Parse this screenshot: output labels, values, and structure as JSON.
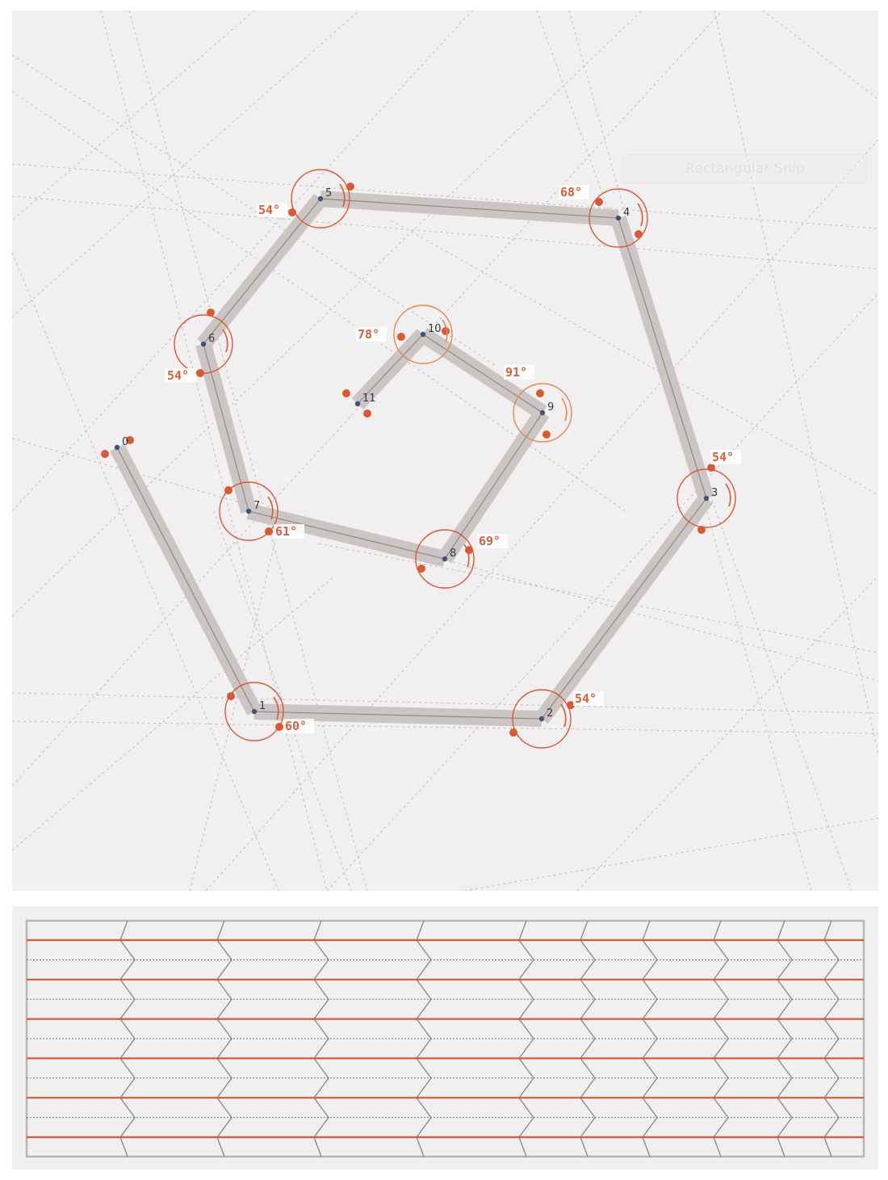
{
  "toolbar": {
    "snip_button_label": "Rectangular Snip"
  },
  "colors": {
    "accent": "#d65a36",
    "band": "#cdc5c4",
    "vertex_dot": "#3f5577",
    "guide": "#bdbcbc",
    "panel_bg": "#f1eff0",
    "pattern_frame": "#b8b6b6"
  },
  "diagram": {
    "vertices": [
      {
        "id": "0",
        "label": "0",
        "angle": ""
      },
      {
        "id": "1",
        "label": "1",
        "angle": "60°"
      },
      {
        "id": "2",
        "label": "2",
        "angle": "54°"
      },
      {
        "id": "3",
        "label": "3",
        "angle": "54°"
      },
      {
        "id": "4",
        "label": "4",
        "angle": "68°"
      },
      {
        "id": "5",
        "label": "5",
        "angle": "54°"
      },
      {
        "id": "6",
        "label": "6",
        "angle": "54°"
      },
      {
        "id": "7",
        "label": "7",
        "angle": "61°"
      },
      {
        "id": "8",
        "label": "8",
        "angle": "69°"
      },
      {
        "id": "9",
        "label": "9",
        "angle": "91°"
      },
      {
        "id": "10",
        "label": "10",
        "angle": "78°"
      },
      {
        "id": "11",
        "label": "11",
        "angle": ""
      }
    ]
  },
  "pattern": {
    "rows": 11
  }
}
